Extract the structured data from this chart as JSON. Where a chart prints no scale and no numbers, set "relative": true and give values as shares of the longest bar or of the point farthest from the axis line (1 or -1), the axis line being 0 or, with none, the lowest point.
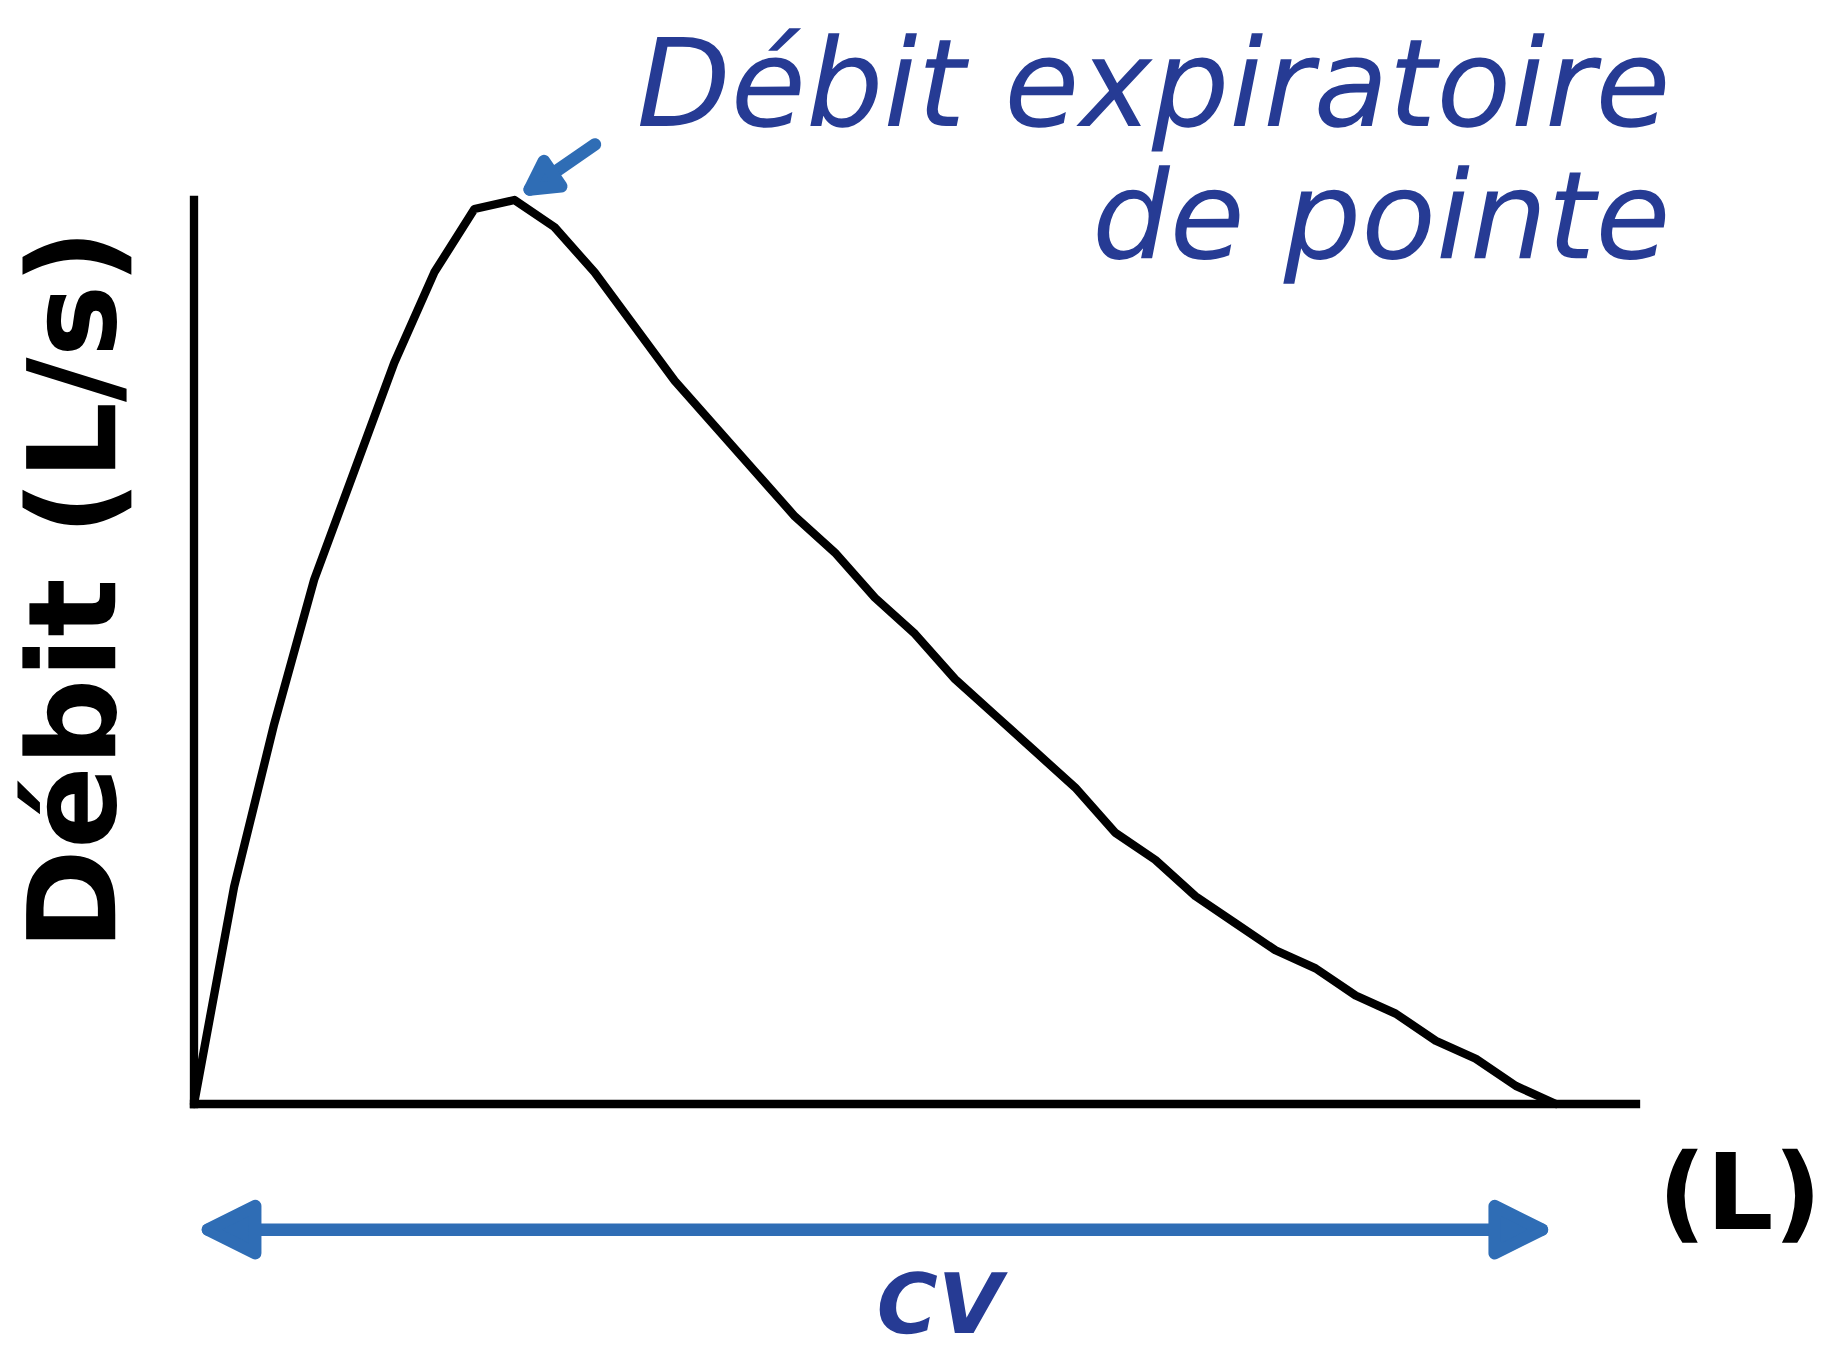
{
  "chart_data": {
    "type": "line",
    "relative": true,
    "categories": [
      null,
      null,
      null,
      null,
      null,
      null,
      null,
      null,
      null,
      null,
      null,
      null,
      null,
      null,
      null,
      null,
      null,
      null,
      null,
      null,
      null,
      null,
      null,
      null,
      null,
      null,
      null,
      null,
      null,
      null,
      null,
      null,
      null,
      null,
      null,
      null,
      null
    ],
    "series": [
      {
        "color": "#000000",
        "values": [
          0,
          0.24,
          0.42,
          0.58,
          0.7,
          0.82,
          0.92,
          0.99,
          1,
          0.97,
          0.92,
          0.86,
          0.8,
          0.75,
          0.7,
          0.65,
          0.61,
          0.56,
          0.52,
          0.47,
          0.43,
          0.39,
          0.35,
          0.3,
          0.27,
          0.23,
          0.2,
          0.17,
          0.15,
          0.12,
          0.1,
          0.07,
          0.05,
          0.02,
          0,
          null,
          null
        ]
      }
    ],
    "xlabel": "(L)",
    "ylabel": "Débit (L/s)",
    "annotations": [
      "Débit expiratoire\nde pointe",
      "CV"
    ],
    "line_style": "solid"
  }
}
